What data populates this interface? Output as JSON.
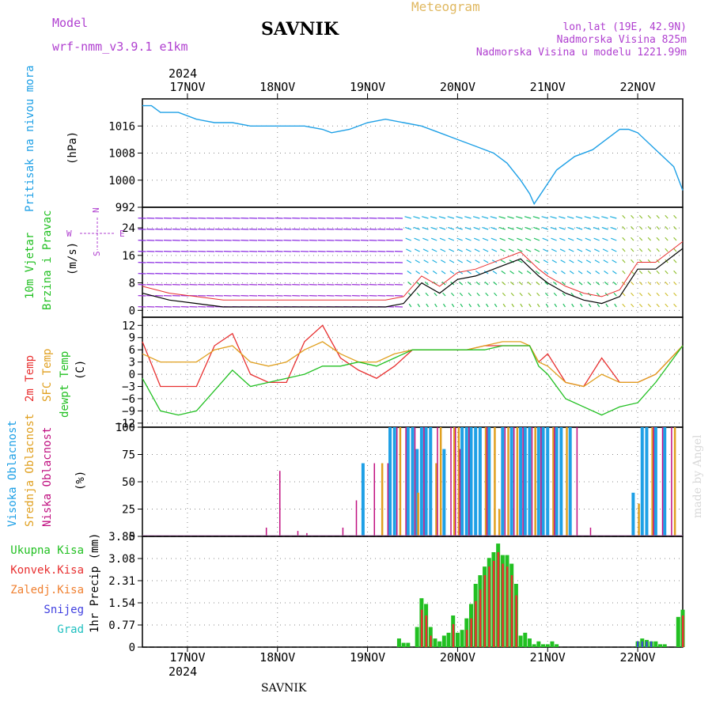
{
  "header": {
    "model_label": "Model",
    "model_name": "wrf-nmm_v3.9.1 e1km",
    "station": "SAVNIK",
    "title": "Meteogram",
    "lonlat": "lon,lat (19E, 42.9N)",
    "elevation": "Nadmorska Visina 825m",
    "model_elevation": "Nadmorska Visina u modelu 1221.99m",
    "year": "2024",
    "footer_station": "SAVNIK",
    "credit": "made by Angel"
  },
  "colors": {
    "pressure": "#1ea0e6",
    "wind_label": "#22c022",
    "magenta": "#b040d0",
    "t2m": "#e83030",
    "tsfc": "#e0a020",
    "dewpt": "#22c022",
    "cloud_high": "#1ea0e6",
    "cloud_mid": "#e0a020",
    "cloud_low": "#c01080",
    "precip_total": "#22c022",
    "precip_conv": "#e83030",
    "precip_frz": "#f08030",
    "precip_snow": "#4040e0",
    "precip_hail": "#20c0c0"
  },
  "x_axis": {
    "top_labels": [
      "17NOV",
      "18NOV",
      "19NOV",
      "20NOV",
      "21NOV",
      "22NOV"
    ],
    "bottom_labels": [
      "17NOV",
      "18NOV",
      "19NOV",
      "20NOV",
      "21NOV",
      "22NOV"
    ],
    "bottom_year": "2024"
  },
  "chart_data": [
    {
      "type": "line",
      "ylabel_lines": [
        "Pritisak na nivou mora",
        "(hPa)"
      ],
      "unit": "hPa",
      "yticks": [
        992,
        1000,
        1008,
        1016
      ],
      "ylim": [
        992,
        1024
      ],
      "x_days": [
        16.5,
        16.6,
        16.7,
        16.9,
        17.1,
        17.3,
        17.5,
        17.7,
        17.9,
        18.1,
        18.3,
        18.5,
        18.6,
        18.8,
        19.0,
        19.2,
        19.4,
        19.6,
        19.8,
        20.0,
        20.2,
        20.4,
        20.55,
        20.7,
        20.8,
        20.85,
        20.9,
        21.0,
        21.1,
        21.3,
        21.5,
        21.7,
        21.8,
        21.9,
        22.0,
        22.2,
        22.4,
        22.5
      ],
      "values": [
        1022,
        1022,
        1020,
        1020,
        1018,
        1017,
        1017,
        1016,
        1016,
        1016,
        1016,
        1015,
        1014,
        1015,
        1017,
        1018,
        1017,
        1016,
        1014,
        1012,
        1010,
        1008,
        1005,
        1000,
        996,
        993,
        995,
        999,
        1003,
        1007,
        1009,
        1013,
        1015,
        1015,
        1014,
        1009,
        1004,
        997
      ]
    },
    {
      "type": "line",
      "ylabel_lines": [
        "10m Vjetar",
        "Brzina i Pravac",
        "(m/s)"
      ],
      "direction_legend": [
        "N",
        "E",
        "W",
        "S"
      ],
      "unit": "m/s",
      "yticks": [
        0,
        8,
        16,
        24
      ],
      "ylim": [
        -2,
        30
      ],
      "x_days": [
        16.5,
        16.8,
        17.1,
        17.4,
        17.7,
        18.0,
        18.3,
        18.6,
        18.9,
        19.2,
        19.4,
        19.6,
        19.8,
        20.0,
        20.2,
        20.5,
        20.7,
        20.9,
        21.0,
        21.2,
        21.4,
        21.6,
        21.8,
        22.0,
        22.2,
        22.5
      ],
      "series": [
        {
          "values": [
            5,
            3,
            2,
            1,
            1,
            1,
            1,
            1,
            1,
            1,
            2,
            8,
            5,
            9,
            10,
            13,
            15,
            10,
            8,
            5,
            3,
            2,
            4,
            12,
            12,
            18
          ]
        }
      ]
    },
    {
      "type": "line",
      "ylabel_lines": [
        "2m Temp",
        "SFC Temp",
        "dewpt Temp",
        "(C)"
      ],
      "unit": "C",
      "yticks": [
        -12,
        -9,
        -6,
        -3,
        0,
        3,
        6,
        9,
        12
      ],
      "ylim": [
        -13,
        14
      ],
      "x_days": [
        16.5,
        16.7,
        16.9,
        17.1,
        17.3,
        17.5,
        17.7,
        17.9,
        18.1,
        18.3,
        18.5,
        18.7,
        18.9,
        19.1,
        19.3,
        19.5,
        19.7,
        19.9,
        20.1,
        20.3,
        20.5,
        20.7,
        20.8,
        20.9,
        21.0,
        21.2,
        21.4,
        21.6,
        21.8,
        22.0,
        22.2,
        22.5
      ],
      "series": [
        {
          "name": "2m Temp",
          "values": [
            5,
            3,
            3,
            3,
            6,
            7,
            3,
            2,
            3,
            6,
            8,
            5,
            3,
            3,
            5,
            6,
            6,
            6,
            6,
            7,
            8,
            8,
            7,
            3,
            2,
            -2,
            -3,
            0,
            -2,
            -2,
            0,
            7
          ]
        },
        {
          "name": "SFC Temp",
          "values": [
            8,
            -3,
            -3,
            -3,
            7,
            10,
            0,
            -2,
            -2,
            8,
            12,
            4,
            1,
            -1,
            2,
            6,
            6,
            6,
            6,
            7,
            7,
            7,
            7,
            3,
            5,
            -2,
            -3,
            4,
            -2,
            -2,
            0,
            7
          ]
        },
        {
          "name": "dewpt Temp",
          "values": [
            -1,
            -9,
            -10,
            -9,
            -4,
            1,
            -3,
            -2,
            -1,
            0,
            2,
            2,
            3,
            2,
            4,
            6,
            6,
            6,
            6,
            6,
            7,
            7,
            7,
            2,
            0,
            -6,
            -8,
            -10,
            -8,
            -7,
            -2,
            7
          ]
        }
      ]
    },
    {
      "type": "bar",
      "ylabel_lines": [
        "Visoka Oblacnost",
        "Srednja Oblacnost",
        "Niska Oblacnost",
        "(%)"
      ],
      "unit": "%",
      "yticks": [
        0,
        25,
        50,
        75,
        100
      ],
      "ylim": [
        0,
        100
      ],
      "series": [
        {
          "name": "Visoka Oblacnost",
          "x_days": [
            18.95,
            19.25,
            19.3,
            19.45,
            19.5,
            19.55,
            19.6,
            19.65,
            19.7,
            19.85,
            20.05,
            20.1,
            20.15,
            20.2,
            20.25,
            20.35,
            20.5,
            20.6,
            20.7,
            20.75,
            20.8,
            20.9,
            20.95,
            21.0,
            21.1,
            21.15,
            21.25,
            21.95,
            22.05,
            22.1,
            22.2,
            22.3
          ],
          "values": [
            67,
            100,
            100,
            100,
            100,
            80,
            100,
            100,
            100,
            80,
            100,
            100,
            100,
            100,
            100,
            100,
            100,
            100,
            100,
            100,
            100,
            100,
            100,
            100,
            100,
            100,
            100,
            40,
            100,
            100,
            100,
            100
          ]
        },
        {
          "name": "Srednja Oblacnost",
          "x_days": [
            19.15,
            19.35,
            19.55,
            19.75,
            19.8,
            19.95,
            20.0,
            20.3,
            20.4,
            20.45,
            20.55,
            20.65,
            20.85,
            21.05,
            21.2,
            22.0,
            22.15,
            22.4
          ],
          "values": [
            67,
            100,
            40,
            67,
            100,
            100,
            100,
            100,
            100,
            25,
            100,
            100,
            100,
            100,
            100,
            30,
            100,
            100
          ]
        },
        {
          "name": "Niska Oblacnost",
          "x_days": [
            17.85,
            18.0,
            18.2,
            18.3,
            18.7,
            18.85,
            19.05,
            19.2,
            19.3,
            19.4,
            19.5,
            19.6,
            19.75,
            19.9,
            19.95,
            20.0,
            20.1,
            20.3,
            20.5,
            20.6,
            20.7,
            20.8,
            20.9,
            21.05,
            21.3,
            21.45,
            22.15,
            22.25,
            22.35
          ],
          "values": [
            8,
            60,
            5,
            3,
            8,
            33,
            67,
            67,
            100,
            100,
            100,
            100,
            100,
            100,
            100,
            80,
            100,
            100,
            100,
            100,
            100,
            100,
            100,
            100,
            100,
            8,
            100,
            100,
            100
          ]
        }
      ]
    },
    {
      "type": "bar",
      "ylabel_lines": [
        "1hr Precip (mm)"
      ],
      "legend": [
        "Ukupna Kisa",
        "Konvek.Kisa",
        "Zaledj.Kisa",
        "Snijeg",
        "Grad"
      ],
      "unit": "mm",
      "yticks": [
        0,
        0.77,
        1.54,
        2.31,
        3.08,
        3.85
      ],
      "ylim": [
        0,
        3.85
      ],
      "series": [
        {
          "name": "Ukupna Kisa",
          "x_days": [
            19.35,
            19.4,
            19.45,
            19.55,
            19.6,
            19.65,
            19.7,
            19.75,
            19.8,
            19.85,
            19.9,
            19.95,
            20.0,
            20.05,
            20.1,
            20.15,
            20.2,
            20.25,
            20.3,
            20.35,
            20.4,
            20.45,
            20.5,
            20.55,
            20.6,
            20.65,
            20.7,
            20.75,
            20.8,
            20.85,
            20.9,
            20.95,
            21.0,
            21.05,
            21.1,
            22.0,
            22.05,
            22.1,
            22.15,
            22.2,
            22.25,
            22.3,
            22.45,
            22.5
          ],
          "values": [
            0.3,
            0.15,
            0.15,
            0.7,
            1.7,
            1.5,
            0.7,
            0.3,
            0.2,
            0.4,
            0.5,
            1.1,
            0.5,
            0.6,
            1.0,
            1.5,
            2.2,
            2.5,
            2.8,
            3.1,
            3.3,
            3.6,
            3.2,
            3.2,
            2.9,
            2.2,
            0.4,
            0.5,
            0.3,
            0.1,
            0.2,
            0.1,
            0.1,
            0.2,
            0.1,
            0.2,
            0.3,
            0.25,
            0.2,
            0.2,
            0.1,
            0.1,
            1.05,
            1.3
          ]
        },
        {
          "name": "Konvek.Kisa",
          "x_days": [
            19.6,
            19.65,
            19.7,
            19.95,
            20.1,
            20.15,
            20.2,
            20.25,
            20.3,
            20.35,
            20.4,
            20.45,
            20.5,
            20.55,
            20.6,
            20.65,
            20.45,
            22.5
          ],
          "values": [
            1.3,
            1.1,
            0.4,
            0.8,
            0.6,
            1.0,
            1.6,
            2.0,
            2.5,
            2.8,
            3.0,
            3.3,
            2.9,
            2.8,
            2.5,
            1.8,
            3.3,
            1.1
          ]
        }
      ]
    }
  ]
}
